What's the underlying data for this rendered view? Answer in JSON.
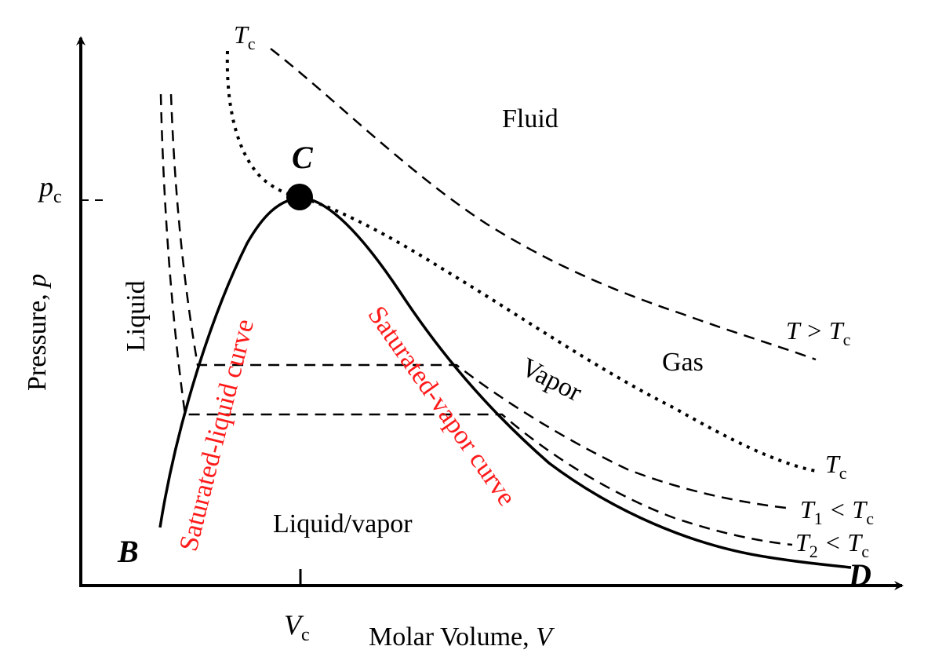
{
  "axes": {
    "x_label_text": "Molar Volume, ",
    "x_label_var": "V",
    "y_label_text": "Pressure, ",
    "y_label_var": "p",
    "vc_main": "V",
    "vc_sub": "c",
    "pc_main": "p",
    "pc_sub": "c"
  },
  "points": {
    "critical": "C",
    "b": "B",
    "d": "D"
  },
  "regions": {
    "fluid": "Fluid",
    "liquid": "Liquid",
    "gas": "Gas",
    "vapor": "Vapor",
    "liquid_vapor": "Liquid/vapor"
  },
  "curves": {
    "saturated_liquid": "Saturated-liquid curve",
    "saturated_vapor": "Saturated-vapor curve"
  },
  "isotherms": {
    "tc_top_main": "T",
    "tc_top_sub": "c",
    "t_gt_main": "T > T",
    "t_gt_sub": "c",
    "tc_right_main": "T",
    "tc_right_sub": "c",
    "t1_a": "T",
    "t1_sub": "1",
    "t1_b": " < T",
    "t1_sub2": "c",
    "t2_a": "T",
    "t2_sub": "2",
    "t2_b": " < T",
    "t2_sub2": "c"
  },
  "colors": {
    "curve_label": "#ff1a1a",
    "lines": "#000000"
  }
}
